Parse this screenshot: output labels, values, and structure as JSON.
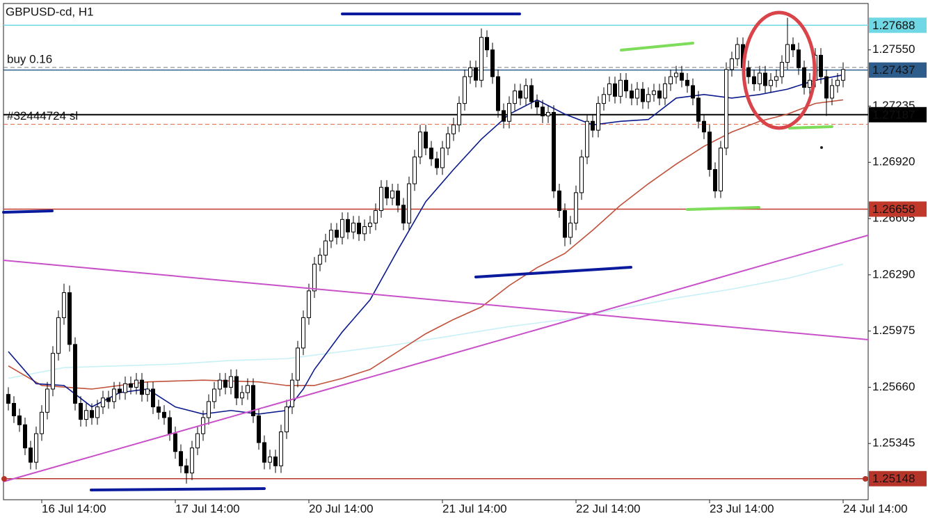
{
  "chart_data": {
    "type": "candlestick",
    "title": "GBPUSD-cd, H1",
    "categories": [
      null,
      null,
      null,
      null,
      null,
      null,
      "16 Jul 14:00",
      null,
      null,
      null,
      null,
      null,
      null,
      null,
      null,
      null,
      null,
      null,
      null,
      null,
      null,
      null,
      null,
      null,
      null,
      null,
      null,
      null,
      null,
      null,
      "17 Jul 14:00",
      null,
      null,
      null,
      null,
      null,
      null,
      null,
      null,
      null,
      null,
      null,
      null,
      null,
      null,
      null,
      null,
      null,
      null,
      null,
      null,
      null,
      null,
      null,
      "20 Jul 14:00",
      null,
      null,
      null,
      null,
      null,
      null,
      null,
      null,
      null,
      null,
      null,
      null,
      null,
      null,
      null,
      null,
      null,
      null,
      null,
      null,
      null,
      null,
      null,
      "21 Jul 14:00",
      null,
      null,
      null,
      null,
      null,
      null,
      null,
      null,
      null,
      null,
      null,
      null,
      null,
      null,
      null,
      null,
      null,
      null,
      null,
      null,
      null,
      null,
      null,
      "22 Jul 14:00",
      null,
      null,
      null,
      null,
      null,
      null,
      null,
      null,
      null,
      null,
      null,
      null,
      null,
      null,
      null,
      null,
      null,
      null,
      null,
      null,
      null,
      null,
      null,
      "23 Jul 14:00",
      null,
      null,
      null,
      null,
      null,
      null,
      null,
      null,
      null,
      null,
      null,
      null,
      null,
      null,
      null,
      null,
      null,
      null,
      null,
      null,
      null,
      null,
      null,
      "24 Jul 14:00"
    ],
    "open": [
      1.2562,
      1.2557,
      1.255,
      1.2545,
      1.2532,
      1.2524,
      1.254,
      1.2552,
      1.2565,
      1.2585,
      1.2605,
      1.2619,
      1.259,
      1.2557,
      1.2548,
      1.2553,
      1.2549,
      1.2555,
      1.256,
      1.2558,
      1.2565,
      1.2563,
      1.2568,
      1.2566,
      1.257,
      1.2562,
      1.2565,
      1.2555,
      1.2552,
      1.2549,
      1.254,
      1.253,
      1.2522,
      1.2518,
      1.2532,
      1.254,
      1.2549,
      1.2558,
      1.2565,
      1.257,
      1.2566,
      1.2572,
      1.256,
      1.2563,
      1.2567,
      1.255,
      1.2535,
      1.2524,
      1.2527,
      1.2522,
      1.2541,
      1.2555,
      1.257,
      1.2588,
      1.2605,
      1.262,
      1.2635,
      1.264,
      1.2648,
      1.2654,
      1.265,
      1.266,
      1.2653,
      1.2658,
      1.2652,
      1.2656,
      1.2658,
      1.2665,
      1.2678,
      1.2672,
      1.2676,
      1.2668,
      1.2658,
      1.268,
      1.2695,
      1.2709,
      1.27,
      1.2694,
      1.2689,
      1.27,
      1.2708,
      1.2713,
      1.2725,
      1.274,
      1.2745,
      1.2738,
      1.2762,
      1.2755,
      1.274,
      1.2721,
      1.2715,
      1.2725,
      1.2732,
      1.2728,
      1.2735,
      1.2726,
      1.2723,
      1.2718,
      1.272,
      1.2676,
      1.2665,
      1.265,
      1.2658,
      1.2675,
      1.2695,
      1.2715,
      1.271,
      1.2725,
      1.273,
      1.2736,
      1.2729,
      1.2738,
      1.2732,
      1.2728,
      1.2733,
      1.2726,
      1.273,
      1.2732,
      1.2728,
      1.2736,
      1.274,
      1.2742,
      1.2738,
      1.2735,
      1.2728,
      1.2715,
      1.2709,
      1.2688,
      1.2676,
      1.27,
      1.2744,
      1.275,
      1.2758,
      1.2745,
      1.274,
      1.2736,
      1.2742,
      1.2735,
      1.2738,
      1.274,
      1.2748,
      1.2758,
      1.2755,
      1.2745,
      1.2734,
      1.2738,
      1.2752,
      1.274,
      1.2728,
      1.2735,
      1.2738
    ],
    "high": [
      1.2566,
      1.2561,
      1.2554,
      1.2549,
      1.2536,
      1.2544,
      1.2556,
      1.2569,
      1.2589,
      1.2609,
      1.2624,
      1.2623,
      1.2594,
      1.2561,
      1.2557,
      1.2557,
      1.2559,
      1.2564,
      1.2564,
      1.2569,
      1.2569,
      1.2572,
      1.2572,
      1.2574,
      1.2574,
      1.2569,
      1.2569,
      1.2559,
      1.2556,
      1.2553,
      1.2544,
      1.2534,
      1.2526,
      1.2536,
      1.2544,
      1.2553,
      1.2562,
      1.2569,
      1.2574,
      1.2574,
      1.2576,
      1.2576,
      1.2567,
      1.2571,
      1.2571,
      1.2554,
      1.2539,
      1.2531,
      1.2531,
      1.2545,
      1.2559,
      1.2574,
      1.2592,
      1.2609,
      1.2624,
      1.2639,
      1.2644,
      1.2652,
      1.2658,
      1.2658,
      1.2664,
      1.2664,
      1.2662,
      1.2662,
      1.266,
      1.2662,
      1.2669,
      1.2682,
      1.2682,
      1.268,
      1.268,
      1.2672,
      1.2684,
      1.2699,
      1.2713,
      1.2713,
      1.2704,
      1.2698,
      1.2704,
      1.2712,
      1.2717,
      1.2729,
      1.2744,
      1.2749,
      1.2749,
      1.2767,
      1.2766,
      1.2759,
      1.2744,
      1.2725,
      1.2729,
      1.2736,
      1.2736,
      1.2739,
      1.2739,
      1.273,
      1.2727,
      1.2724,
      1.2724,
      1.268,
      1.2669,
      1.2662,
      1.2679,
      1.2699,
      1.2719,
      1.2719,
      1.2729,
      1.2734,
      1.274,
      1.274,
      1.2742,
      1.2742,
      1.2736,
      1.2737,
      1.2737,
      1.2734,
      1.2736,
      1.2736,
      1.274,
      1.2744,
      1.2746,
      1.2746,
      1.2742,
      1.2739,
      1.2732,
      1.2719,
      1.2713,
      1.2692,
      1.2704,
      1.2748,
      1.2754,
      1.2762,
      1.2762,
      1.2749,
      1.2744,
      1.2746,
      1.2746,
      1.2742,
      1.2744,
      1.2752,
      1.2773,
      1.2762,
      1.2759,
      1.2749,
      1.2742,
      1.2756,
      1.2756,
      1.2744,
      1.2739,
      1.2742,
      1.2748
    ],
    "low": [
      1.2553,
      1.2546,
      1.2541,
      1.2528,
      1.252,
      1.252,
      1.2536,
      1.2548,
      1.2561,
      1.2581,
      1.2601,
      1.2586,
      1.2553,
      1.2544,
      1.2544,
      1.2545,
      1.2545,
      1.2551,
      1.2554,
      1.2554,
      1.2559,
      1.2559,
      1.2562,
      1.2562,
      1.2558,
      1.2558,
      1.2551,
      1.2548,
      1.2545,
      1.2536,
      1.2526,
      1.2518,
      1.2512,
      1.2514,
      1.2528,
      1.2536,
      1.2545,
      1.2554,
      1.2561,
      1.2562,
      1.2562,
      1.2556,
      1.2556,
      1.2559,
      1.2546,
      1.2531,
      1.252,
      1.252,
      1.2518,
      1.2518,
      1.2537,
      1.2551,
      1.2566,
      1.2584,
      1.2601,
      1.2616,
      1.2631,
      1.2636,
      1.2644,
      1.2646,
      1.2646,
      1.2649,
      1.2649,
      1.2648,
      1.2648,
      1.2652,
      1.2654,
      1.2661,
      1.2668,
      1.2668,
      1.2664,
      1.2654,
      1.2654,
      1.2676,
      1.2691,
      1.2696,
      1.269,
      1.2685,
      1.2685,
      1.2696,
      1.2704,
      1.2709,
      1.2721,
      1.2736,
      1.2734,
      1.2734,
      1.2751,
      1.2736,
      1.2717,
      1.2711,
      1.2711,
      1.2721,
      1.2724,
      1.2724,
      1.2722,
      1.2719,
      1.2714,
      1.2714,
      1.2672,
      1.2661,
      1.2645,
      1.2646,
      1.2654,
      1.2671,
      1.2691,
      1.2706,
      1.2706,
      1.2721,
      1.2726,
      1.2725,
      1.2725,
      1.2728,
      1.2724,
      1.2724,
      1.2722,
      1.2722,
      1.2726,
      1.2724,
      1.2724,
      1.2732,
      1.2736,
      1.2734,
      1.2731,
      1.2724,
      1.2711,
      1.2705,
      1.2684,
      1.2672,
      1.2672,
      1.2696,
      1.274,
      1.2746,
      1.2741,
      1.2736,
      1.2732,
      1.2732,
      1.2731,
      1.2731,
      1.2734,
      1.2736,
      1.2744,
      1.2751,
      1.2741,
      1.273,
      1.273,
      1.2734,
      1.2736,
      1.2718,
      1.2724,
      1.2731,
      1.2734
    ],
    "close": [
      1.2557,
      1.255,
      1.2545,
      1.2532,
      1.2524,
      1.254,
      1.2552,
      1.2565,
      1.2585,
      1.2605,
      1.2619,
      1.259,
      1.2557,
      1.2548,
      1.2553,
      1.2549,
      1.2555,
      1.256,
      1.2558,
      1.2565,
      1.2563,
      1.2568,
      1.2566,
      1.257,
      1.2562,
      1.2565,
      1.2555,
      1.2552,
      1.2549,
      1.254,
      1.253,
      1.2522,
      1.2518,
      1.2532,
      1.254,
      1.2549,
      1.2558,
      1.2565,
      1.257,
      1.2566,
      1.2572,
      1.256,
      1.2563,
      1.2567,
      1.255,
      1.2535,
      1.2524,
      1.2527,
      1.2522,
      1.2541,
      1.2555,
      1.257,
      1.2588,
      1.2605,
      1.262,
      1.2635,
      1.264,
      1.2648,
      1.2654,
      1.265,
      1.266,
      1.2653,
      1.2658,
      1.2652,
      1.2656,
      1.2658,
      1.2665,
      1.2678,
      1.2672,
      1.2676,
      1.2668,
      1.2658,
      1.268,
      1.2695,
      1.2709,
      1.27,
      1.2694,
      1.2689,
      1.27,
      1.2708,
      1.2713,
      1.2725,
      1.274,
      1.2745,
      1.2738,
      1.2762,
      1.2755,
      1.274,
      1.2721,
      1.2715,
      1.2725,
      1.2732,
      1.2728,
      1.2735,
      1.2726,
      1.2723,
      1.2718,
      1.272,
      1.2676,
      1.2665,
      1.265,
      1.2658,
      1.2675,
      1.2695,
      1.2715,
      1.271,
      1.2725,
      1.273,
      1.2736,
      1.2729,
      1.2738,
      1.2732,
      1.2728,
      1.2733,
      1.2726,
      1.273,
      1.2732,
      1.2728,
      1.2736,
      1.274,
      1.2742,
      1.2738,
      1.2735,
      1.2728,
      1.2715,
      1.2709,
      1.2688,
      1.2676,
      1.27,
      1.2744,
      1.275,
      1.2758,
      1.2745,
      1.274,
      1.2736,
      1.2742,
      1.2735,
      1.2738,
      1.274,
      1.2748,
      1.2758,
      1.2755,
      1.2745,
      1.2734,
      1.2738,
      1.2752,
      1.274,
      1.2728,
      1.2735,
      1.2738,
      1.2744
    ],
    "ylim": [
      1.2503,
      1.2781
    ],
    "yticks": [
      1.25345,
      {
        "value": 1.2566,
        "label": "1.25660"
      },
      1.25975,
      {
        "value": 1.2629,
        "label": "1.26290"
      },
      1.26605,
      {
        "value": 1.2692,
        "label": "1.26920"
      },
      1.27235,
      {
        "value": 1.2755,
        "label": "1.27550"
      }
    ],
    "indicators": [
      {
        "color": "#c8f0f6",
        "x": [
          0,
          10,
          20,
          30,
          40,
          50,
          60,
          70,
          80,
          90,
          100,
          110,
          120,
          130,
          140,
          150
        ],
        "values": [
          1.2571,
          1.2577,
          1.2578,
          1.2579,
          1.2581,
          1.2582,
          1.2586,
          1.259,
          1.2595,
          1.26,
          1.2604,
          1.261,
          1.2616,
          1.2621,
          1.2627,
          1.2635
        ]
      },
      {
        "color": "#c0503a",
        "x": [
          0,
          6,
          15,
          25,
          35,
          45,
          50,
          55,
          60,
          65,
          70,
          75,
          80,
          85,
          90,
          95,
          100,
          105,
          110,
          115,
          120,
          125,
          130,
          135,
          140,
          145,
          150
        ],
        "values": [
          1.2578,
          1.2567,
          1.2565,
          1.2569,
          1.257,
          1.2569,
          1.2567,
          1.2567,
          1.2571,
          1.2576,
          1.2586,
          1.2596,
          1.2604,
          1.2611,
          1.2623,
          1.2633,
          1.2641,
          1.2654,
          1.2668,
          1.268,
          1.2691,
          1.2701,
          1.2709,
          1.2715,
          1.2719,
          1.2725,
          1.2727
        ]
      },
      {
        "color": "#0a1a8c",
        "x": [
          0,
          5,
          10,
          15,
          20,
          25,
          30,
          35,
          40,
          45,
          50,
          53,
          55,
          60,
          65,
          70,
          75,
          80,
          85,
          90,
          95,
          100,
          105,
          110,
          115,
          120,
          125,
          130,
          135,
          140,
          145,
          150
        ],
        "values": [
          1.2586,
          1.2568,
          1.2567,
          1.2555,
          1.2563,
          1.2565,
          1.2555,
          1.2551,
          1.2553,
          1.2551,
          1.2553,
          1.2565,
          1.2576,
          1.2597,
          1.2615,
          1.2643,
          1.267,
          1.2688,
          1.2705,
          1.2719,
          1.2727,
          1.2719,
          1.2713,
          1.2715,
          1.2716,
          1.2728,
          1.273,
          1.2728,
          1.273,
          1.2733,
          1.2738,
          1.2741
        ]
      }
    ],
    "price_lines": [
      {
        "value": 1.27688,
        "color": "#6fd8e4"
      },
      {
        "value": 1.27437,
        "color": "#2e5d8c"
      },
      {
        "value": 1.27187,
        "color": "#000000"
      },
      {
        "value": 1.26658,
        "color": "#c0392b"
      },
      {
        "value": 1.25148,
        "color": "#b5352a"
      }
    ],
    "order_lines": [
      {
        "label": "buy 0.16",
        "value": 1.27452,
        "color": "#777777"
      },
      {
        "label": "#32444724 sl",
        "value": 1.27133,
        "color": "#e0603a"
      }
    ]
  }
}
